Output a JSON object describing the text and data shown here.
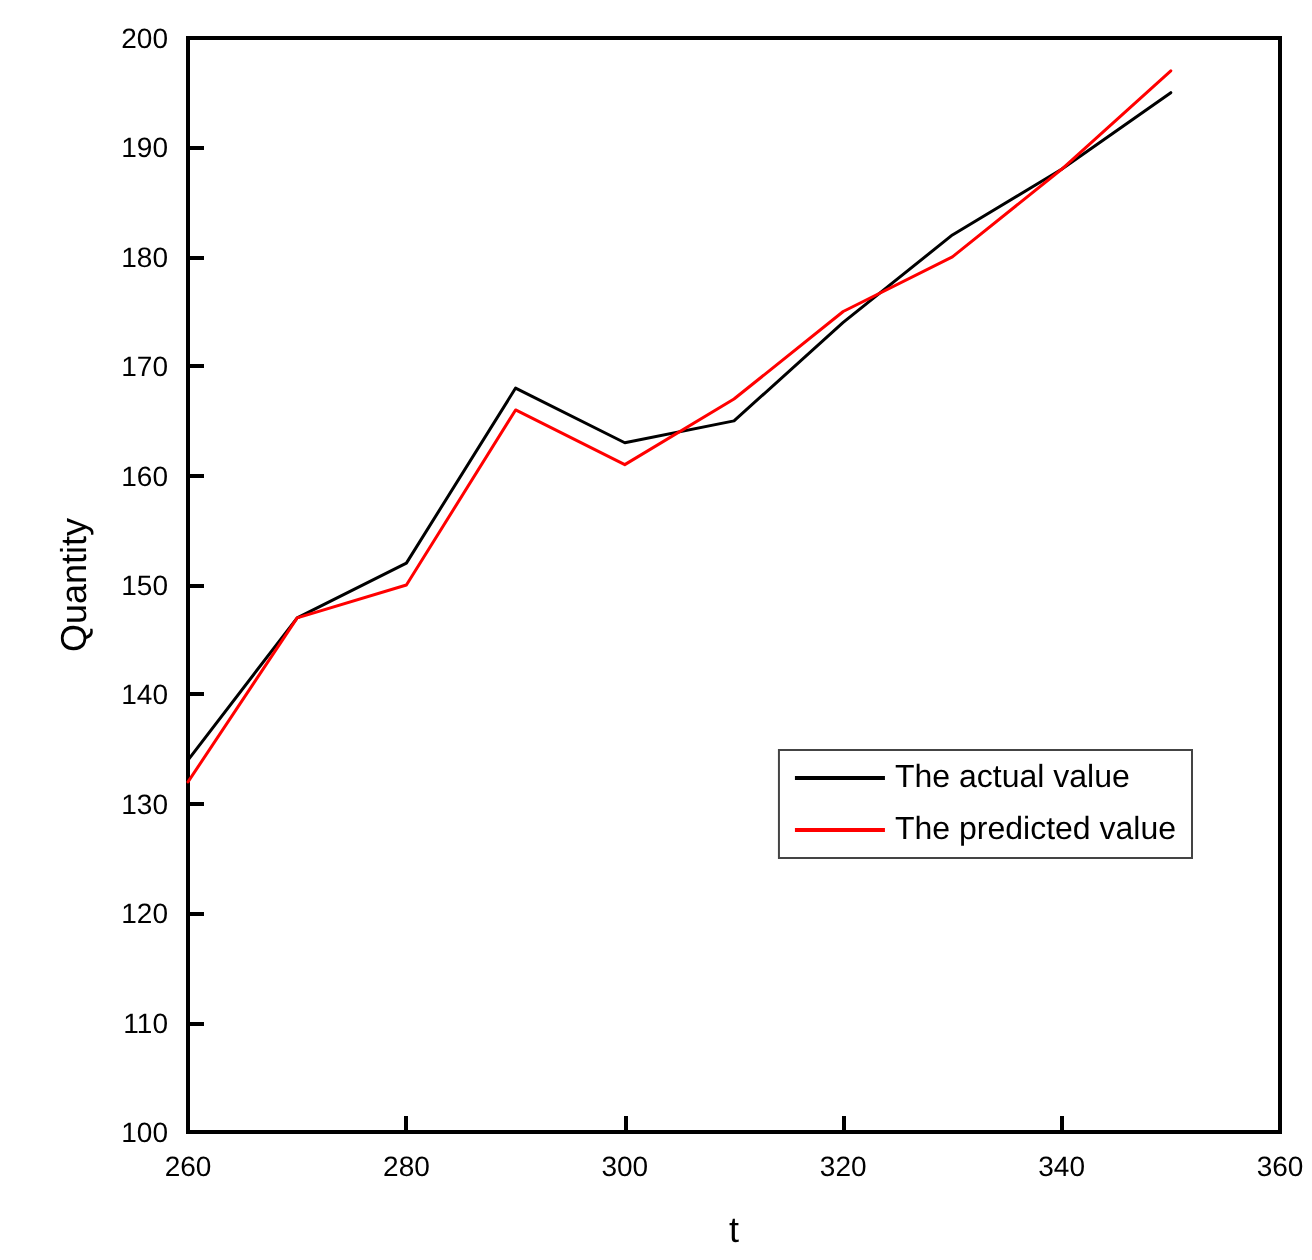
{
  "chart_data": {
    "type": "line",
    "xlabel": "t",
    "ylabel": "Quantity",
    "x": [
      260,
      270,
      280,
      290,
      300,
      310,
      320,
      330,
      340,
      350
    ],
    "series": [
      {
        "name": "The actual value",
        "color": "#000000",
        "values": [
          134,
          147,
          152,
          168,
          163,
          165,
          174,
          182,
          188,
          195
        ]
      },
      {
        "name": "The predicted value",
        "color": "#ff0000",
        "values": [
          132,
          147,
          150,
          166,
          161,
          167,
          175,
          180,
          188,
          197
        ]
      }
    ],
    "xlim": [
      260,
      360
    ],
    "xticks": [
      260,
      280,
      300,
      320,
      340,
      360
    ],
    "ylim": [
      100,
      200
    ],
    "yticks": [
      100,
      110,
      120,
      130,
      140,
      150,
      160,
      170,
      180,
      190,
      200
    ],
    "legend": "right",
    "marker": "none",
    "line_style": "solid",
    "grid": false
  }
}
